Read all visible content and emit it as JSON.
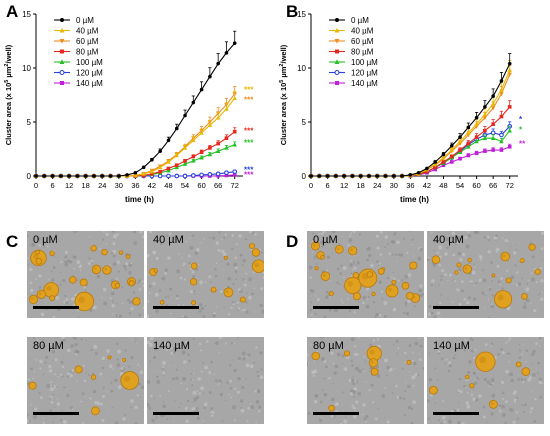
{
  "panels": {
    "A": "A",
    "B": "B",
    "C": "C",
    "D": "D"
  },
  "chart_data": [
    {
      "type": "line",
      "panel": "A",
      "title": "",
      "xlabel": "time (h)",
      "ylabel": "Cluster area (x 10",
      "ylabel_sup": "5",
      "ylabel_unit": " µm",
      "ylabel_sup2": "2",
      "ylabel_tail": "/well)",
      "xlim": [
        0,
        75
      ],
      "ylim": [
        0,
        15
      ],
      "xticks": [
        0,
        6,
        12,
        18,
        24,
        30,
        36,
        42,
        48,
        54,
        60,
        66,
        72
      ],
      "yticks": [
        0,
        5,
        10,
        15
      ],
      "x": [
        0,
        3,
        6,
        9,
        12,
        15,
        18,
        21,
        24,
        27,
        30,
        33,
        36,
        39,
        42,
        45,
        48,
        51,
        54,
        57,
        60,
        63,
        66,
        69,
        72
      ],
      "legend_position": "top-left",
      "series": [
        {
          "name": "0 µM",
          "color": "#000000",
          "marker": "circle",
          "values": [
            0,
            0,
            0,
            0,
            0,
            0,
            0,
            0,
            0,
            0,
            0,
            0.1,
            0.3,
            0.8,
            1.5,
            2.3,
            3.3,
            4.4,
            5.6,
            6.8,
            8.0,
            9.2,
            10.4,
            11.4,
            12.3
          ]
        },
        {
          "name": "40 µM",
          "color": "#e8b800",
          "marker": "triangle",
          "values": [
            0,
            0,
            0,
            0,
            0,
            0,
            0,
            0,
            0,
            0,
            0,
            0,
            0.05,
            0.2,
            0.4,
            0.8,
            1.3,
            1.9,
            2.6,
            3.3,
            4.0,
            4.7,
            5.4,
            6.2,
            7.2
          ]
        },
        {
          "name": "60 µM",
          "color": "#f08c1e",
          "marker": "triangle-down",
          "values": [
            0,
            0,
            0,
            0,
            0,
            0,
            0,
            0,
            0,
            0,
            0,
            0,
            0.05,
            0.2,
            0.5,
            0.9,
            1.4,
            2.0,
            2.7,
            3.5,
            4.2,
            5.0,
            5.8,
            6.6,
            7.6
          ]
        },
        {
          "name": "80 µM",
          "color": "#e8281e",
          "marker": "square",
          "values": [
            0,
            0,
            0,
            0,
            0,
            0,
            0,
            0,
            0,
            0,
            0,
            0,
            0,
            0.05,
            0.2,
            0.4,
            0.7,
            1.0,
            1.4,
            1.8,
            2.2,
            2.6,
            3.0,
            3.5,
            4.1
          ]
        },
        {
          "name": "100 µM",
          "color": "#22c022",
          "marker": "triangle",
          "values": [
            0,
            0,
            0,
            0,
            0,
            0,
            0,
            0,
            0,
            0,
            0,
            0,
            0,
            0.05,
            0.15,
            0.3,
            0.5,
            0.8,
            1.1,
            1.4,
            1.7,
            2.0,
            2.3,
            2.6,
            2.9
          ]
        },
        {
          "name": "120 µM",
          "color": "#2840e0",
          "marker": "circle-open",
          "values": [
            0,
            0,
            0,
            0,
            0,
            0,
            0,
            0,
            0,
            0,
            0,
            0,
            0,
            0,
            0,
            0,
            0,
            0,
            0,
            0.05,
            0.1,
            0.15,
            0.2,
            0.3,
            0.4
          ]
        },
        {
          "name": "140 µM",
          "color": "#c020d8",
          "marker": "square",
          "values": [
            0,
            0,
            0,
            0,
            0,
            0,
            0,
            0,
            0,
            0,
            0,
            0,
            0,
            0,
            0,
            0,
            0,
            0,
            0,
            0,
            0,
            0,
            0.02,
            0.05,
            0.1
          ]
        }
      ],
      "annotations": [
        {
          "text": "***",
          "color": "#e8b800",
          "y": 8.0
        },
        {
          "text": "***",
          "color": "#f08c1e",
          "y": 7.1
        },
        {
          "text": "***",
          "color": "#e8281e",
          "y": 4.2
        },
        {
          "text": "***",
          "color": "#22c022",
          "y": 3.1
        },
        {
          "text": "***",
          "color": "#2840e0",
          "y": 0.6
        },
        {
          "text": "***",
          "color": "#c020d8",
          "y": 0.15
        }
      ]
    },
    {
      "type": "line",
      "panel": "B",
      "title": "",
      "xlabel": "time (h)",
      "ylabel": "Cluster area (x 10",
      "ylabel_sup": "5",
      "ylabel_unit": " µm",
      "ylabel_sup2": "2",
      "ylabel_tail": "/well)",
      "xlim": [
        0,
        75
      ],
      "ylim": [
        0,
        15
      ],
      "xticks": [
        0,
        6,
        12,
        18,
        24,
        30,
        36,
        42,
        48,
        54,
        60,
        66,
        72
      ],
      "yticks": [
        0,
        5,
        10,
        15
      ],
      "x": [
        0,
        3,
        6,
        9,
        12,
        15,
        18,
        21,
        24,
        27,
        30,
        33,
        36,
        39,
        42,
        45,
        48,
        51,
        54,
        57,
        60,
        63,
        66,
        69,
        72
      ],
      "legend_position": "top-left",
      "series": [
        {
          "name": "0 µM",
          "color": "#000000",
          "marker": "circle",
          "values": [
            0,
            0,
            0,
            0,
            0,
            0,
            0,
            0,
            0,
            0,
            0,
            0,
            0.1,
            0.3,
            0.7,
            1.3,
            2.0,
            2.8,
            3.6,
            4.5,
            5.4,
            6.4,
            7.4,
            8.8,
            10.4
          ]
        },
        {
          "name": "40 µM",
          "color": "#e8b800",
          "marker": "triangle",
          "values": [
            0,
            0,
            0,
            0,
            0,
            0,
            0,
            0,
            0,
            0,
            0,
            0,
            0.05,
            0.2,
            0.6,
            1.1,
            1.7,
            2.4,
            3.2,
            4.0,
            4.8,
            5.7,
            6.7,
            8.0,
            9.8
          ]
        },
        {
          "name": "60 µM",
          "color": "#f08c1e",
          "marker": "triangle-down",
          "values": [
            0,
            0,
            0,
            0,
            0,
            0,
            0,
            0,
            0,
            0,
            0,
            0,
            0.05,
            0.2,
            0.6,
            1.0,
            1.6,
            2.3,
            3.0,
            3.8,
            4.6,
            5.4,
            6.3,
            7.6,
            9.4
          ]
        },
        {
          "name": "80 µM",
          "color": "#e8281e",
          "marker": "square",
          "values": [
            0,
            0,
            0,
            0,
            0,
            0,
            0,
            0,
            0,
            0,
            0,
            0,
            0.05,
            0.15,
            0.4,
            0.8,
            1.3,
            1.8,
            2.4,
            3.0,
            3.6,
            4.2,
            4.8,
            5.5,
            6.4
          ]
        },
        {
          "name": "100 µM",
          "color": "#22c022",
          "marker": "triangle",
          "values": [
            0,
            0,
            0,
            0,
            0,
            0,
            0,
            0,
            0,
            0,
            0,
            0,
            0.05,
            0.15,
            0.4,
            0.8,
            1.2,
            1.7,
            2.2,
            2.7,
            3.2,
            3.5,
            3.5,
            3.2,
            4.2
          ]
        },
        {
          "name": "120 µM",
          "color": "#2840e0",
          "marker": "circle-open",
          "values": [
            0,
            0,
            0,
            0,
            0,
            0,
            0,
            0,
            0,
            0,
            0,
            0,
            0.05,
            0.15,
            0.4,
            0.8,
            1.2,
            1.7,
            2.3,
            2.9,
            3.4,
            3.8,
            4.0,
            3.8,
            4.6
          ]
        },
        {
          "name": "140 µM",
          "color": "#c020d8",
          "marker": "square",
          "values": [
            0,
            0,
            0,
            0,
            0,
            0,
            0,
            0,
            0,
            0,
            0,
            0,
            0,
            0.1,
            0.3,
            0.6,
            1.0,
            1.3,
            1.6,
            1.9,
            2.1,
            2.3,
            2.4,
            2.4,
            2.7
          ]
        }
      ],
      "annotations": [
        {
          "text": "*",
          "color": "#2840e0",
          "y": 5.3
        },
        {
          "text": "*",
          "color": "#22c022",
          "y": 4.3
        },
        {
          "text": "**",
          "color": "#c020d8",
          "y": 3.0
        }
      ]
    }
  ],
  "micrographs": [
    {
      "panel": "C",
      "label": "0 µM",
      "density": "high"
    },
    {
      "panel": "C",
      "label": "40 µM",
      "density": "medium"
    },
    {
      "panel": "C",
      "label": "80 µM",
      "density": "low"
    },
    {
      "panel": "C",
      "label": "140 µM",
      "density": "none"
    },
    {
      "panel": "D",
      "label": "0 µM",
      "density": "high"
    },
    {
      "panel": "D",
      "label": "40 µM",
      "density": "medium"
    },
    {
      "panel": "D",
      "label": "80 µM",
      "density": "low"
    },
    {
      "panel": "D",
      "label": "140 µM",
      "density": "low"
    }
  ],
  "colors": {
    "cluster": "#e0a020",
    "cluster_dark": "#b87808",
    "background": "#a7a7a7"
  }
}
